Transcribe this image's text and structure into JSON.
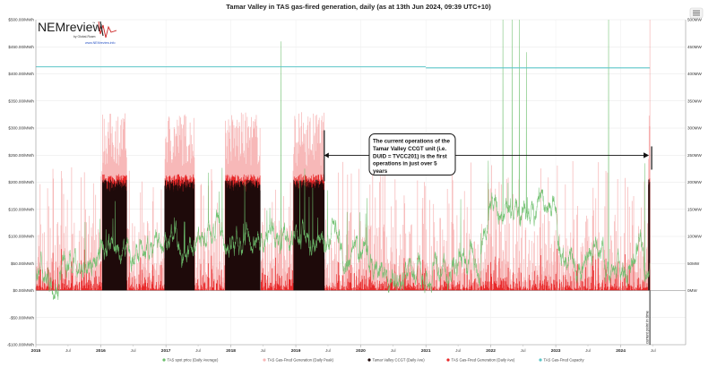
{
  "chart_data": {
    "type": "line",
    "title": "Tamar Valley in TAS gas-fired generation, daily (as at 13th Jun 2024, 09:39 UTC+10)",
    "y_left": {
      "min": -100,
      "max": 500,
      "ticks": [
        -100,
        -50,
        0,
        50,
        100,
        150,
        200,
        250,
        300,
        350,
        400,
        450,
        500
      ],
      "tick_labels": [
        "-$100.00/MWh",
        "-$50.00/MWh",
        "$0.00/MWh",
        "$50.00/MWh",
        "$100.00/MWh",
        "$150.00/MWh",
        "$200.00/MWh",
        "$250.00/MWh",
        "$300.00/MWh",
        "$350.00/MWh",
        "$400.00/MWh",
        "$450.00/MWh",
        "$500.00/MWh"
      ]
    },
    "y_right": {
      "min": 0,
      "max": 500,
      "ticks": [
        0,
        50,
        100,
        150,
        200,
        250,
        300,
        350,
        400,
        450,
        500
      ],
      "tick_labels": [
        "0MW",
        "50MW",
        "100MW",
        "150MW",
        "200MW",
        "250MW",
        "300MW",
        "350MW",
        "400MW",
        "450MW",
        "500MW"
      ]
    },
    "x_axis": {
      "start": "2015-01-01",
      "end": "2024-12-31",
      "year_labels": [
        "2015",
        "2016",
        "2017",
        "2018",
        "2019",
        "2020",
        "2021",
        "2022",
        "2023",
        "2024"
      ],
      "mid_label": "Jul"
    },
    "legend": [
      {
        "label": "TAS spot price (Daily Average)",
        "color": "#6dbf6d"
      },
      {
        "label": "TAS Gas-Fired Generation (Daily Peak)",
        "color": "#f7b8b8"
      },
      {
        "label": "Tamar Valley CCGT (Daily Ave)",
        "color": "#1e0a0a"
      },
      {
        "label": "TAS Gas-Fired Generation (Daily Ave)",
        "color": "#e8292a"
      },
      {
        "label": "TAS Gas-Fired Capacity",
        "color": "#5cc5c8"
      }
    ],
    "capacity_series": [
      {
        "from": "2015-01-01",
        "to": "2020-12-31",
        "value": 413
      },
      {
        "from": "2021-01-01",
        "to": "2024-06-13",
        "value": 411
      }
    ],
    "ccgt_blocks": [
      {
        "from": "2016-01-10",
        "to": "2016-05-25",
        "value": 205
      },
      {
        "from": "2016-12-25",
        "to": "2017-06-10",
        "value": 205
      },
      {
        "from": "2017-12-01",
        "to": "2018-06-15",
        "value": 205
      },
      {
        "from": "2018-12-20",
        "to": "2019-06-10",
        "value": 205
      },
      {
        "from": "2024-06-05",
        "to": "2024-06-13",
        "value": 205
      }
    ],
    "price_spikes": [
      {
        "date": "2018-10-10",
        "value": 460
      },
      {
        "date": "2019-02-20",
        "value": 225
      },
      {
        "date": "2022-03-10",
        "value": 500
      },
      {
        "date": "2022-05-01",
        "value": 500
      },
      {
        "date": "2022-06-10",
        "value": 500
      },
      {
        "date": "2022-07-20",
        "value": 440
      },
      {
        "date": "2023-10-25",
        "value": 500
      },
      {
        "date": "2024-05-15",
        "value": 235
      }
    ],
    "annotation": {
      "text": [
        "The current operations of the",
        "Tamar Valley CCGT unit (i.e.",
        "DUID = TVCC201) is the first",
        "operations in just over 5",
        "years"
      ],
      "arrow_from": "2019-06-10",
      "arrow_to": "2024-06-13",
      "y_value": 205
    },
    "current_point_label": "current point in time",
    "current_date": "2024-06-13"
  },
  "logo": {
    "name": "NEMreview",
    "tm": "™",
    "by": "by Global-Roam",
    "url": "www.NEMreview.info"
  },
  "colors": {
    "price": "#6dbf6d",
    "peak": "#f7b8b8",
    "ccgt": "#1e0a0a",
    "ave": "#e8292a",
    "capacity": "#5cc5c8",
    "annotation_box": "#111111"
  },
  "icons": {
    "menu": "menu-icon"
  }
}
